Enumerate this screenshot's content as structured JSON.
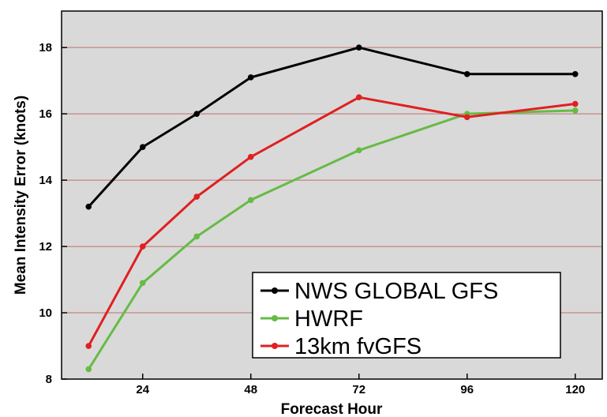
{
  "chart_data": {
    "type": "line",
    "title": "",
    "xlabel": "Forecast Hour",
    "ylabel": "Mean Intensity Error (knots)",
    "x_ticks": [
      24,
      48,
      72,
      96,
      120
    ],
    "y_ticks": [
      8,
      10,
      12,
      14,
      16,
      18
    ],
    "xlim": [
      6,
      126
    ],
    "ylim": [
      8,
      19.1
    ],
    "grid": "horizontal",
    "legend_position": "bottom-right",
    "background": "#d9d9d9",
    "x": [
      12,
      24,
      36,
      48,
      72,
      96,
      120
    ],
    "series": [
      {
        "name": "NWS GLOBAL GFS",
        "color": "#000000",
        "values": [
          13.2,
          15.0,
          16.0,
          17.1,
          18.0,
          17.2,
          17.2
        ]
      },
      {
        "name": "HWRF",
        "color": "#66bb44",
        "values": [
          8.3,
          10.9,
          12.3,
          13.4,
          14.9,
          16.0,
          16.1
        ]
      },
      {
        "name": "13km fvGFS",
        "color": "#e02020",
        "values": [
          9.0,
          12.0,
          13.5,
          14.7,
          16.5,
          15.9,
          16.3
        ]
      }
    ]
  }
}
